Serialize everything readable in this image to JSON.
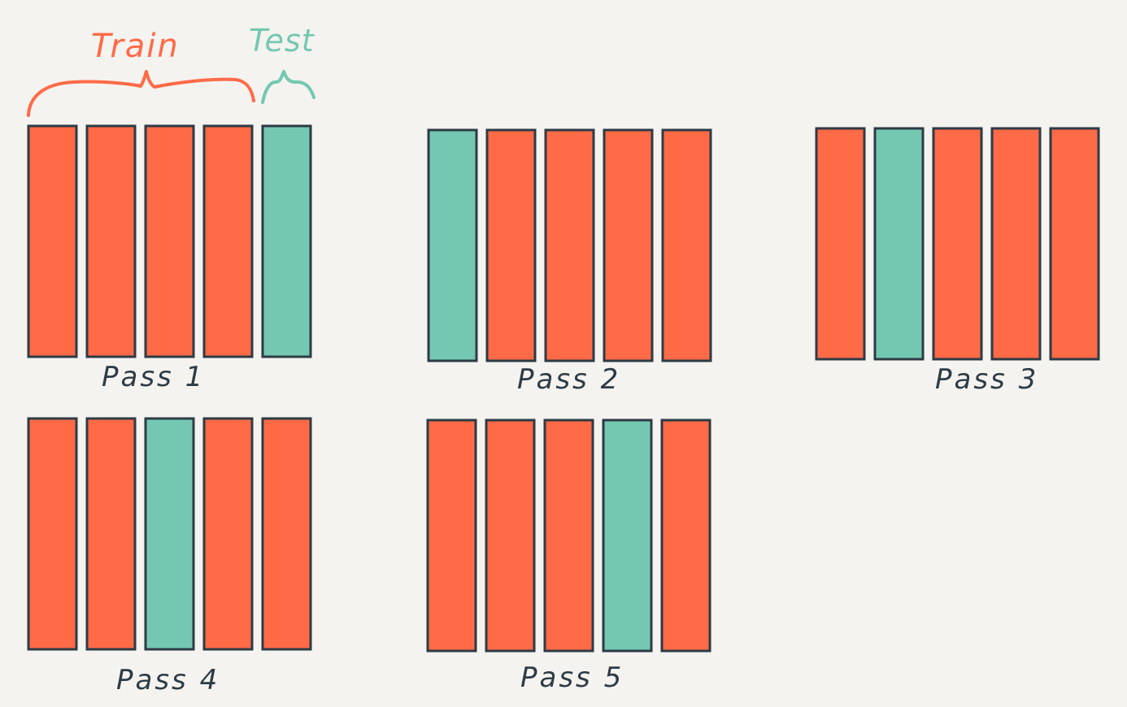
{
  "colors": {
    "background": "#f4f3f0",
    "train": "#ff6a47",
    "test": "#74c8b1",
    "outline": "#2d3b45",
    "label": "#2d3b45"
  },
  "legend": {
    "train_label": "Train",
    "test_label": "Test"
  },
  "passes": [
    {
      "label": "Pass 1",
      "test_fold": 5,
      "folds": 5
    },
    {
      "label": "Pass 2",
      "test_fold": 1,
      "folds": 5
    },
    {
      "label": "Pass 3",
      "test_fold": 2,
      "folds": 5
    },
    {
      "label": "Pass 4",
      "test_fold": 3,
      "folds": 5
    },
    {
      "label": "Pass 5",
      "test_fold": 4,
      "folds": 5
    }
  ]
}
